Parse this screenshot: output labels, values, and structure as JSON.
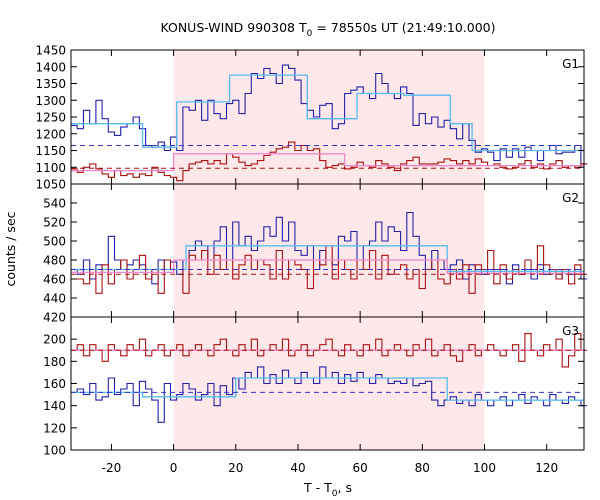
{
  "chart_data": {
    "type": "line",
    "title": "KONUS-WIND 990308 T",
    "title_sub": "0",
    "title_rest": " = 78550s UT (21:49:10.000)",
    "ylabel": "counts / sec",
    "xlabel": "T - T",
    "xlabel_sub": "0",
    "xlabel_rest": ", s",
    "xlim": [
      -33,
      132
    ],
    "x_ticks": [
      -20,
      0,
      20,
      40,
      60,
      80,
      100,
      120
    ],
    "shaded_interval": [
      0,
      100
    ],
    "colors": {
      "raw_blue": "#2222aa",
      "raw_red": "#aa1111",
      "fit_cyan": "#55bbee",
      "fit_pink": "#ee88cc",
      "bg_blue": "#3333cc",
      "bg_red": "#aa1111",
      "shade": "#ffe8ea"
    },
    "panels": [
      {
        "label": "G1",
        "ylim": [
          1050,
          1450
        ],
        "y_ticks": [
          1050,
          1100,
          1150,
          1200,
          1250,
          1300,
          1350,
          1400,
          1450
        ],
        "series": [
          {
            "role": "raw",
            "color": "raw_blue",
            "x0": -33,
            "dx": 2,
            "values": [
              1225,
              1215,
              1270,
              1230,
              1300,
              1245,
              1205,
              1195,
              1220,
              1230,
              1250,
              1215,
              1165,
              1160,
              1175,
              1150,
              1190,
              1150,
              1280,
              1270,
              1300,
              1240,
              1300,
              1260,
              1245,
              1290,
              1300,
              1260,
              1320,
              1380,
              1365,
              1395,
              1380,
              1350,
              1405,
              1395,
              1360,
              1290,
              1270,
              1250,
              1285,
              1290,
              1215,
              1230,
              1320,
              1330,
              1340,
              1320,
              1305,
              1380,
              1350,
              1320,
              1305,
              1340,
              1320,
              1225,
              1260,
              1230,
              1250,
              1220,
              1240,
              1215,
              1185,
              1230,
              1180,
              1145,
              1155,
              1145,
              1120,
              1155,
              1130,
              1155,
              1130,
              1160,
              1150,
              1120,
              1150,
              1165,
              1140,
              1145,
              1145,
              1165,
              1110
            ]
          },
          {
            "role": "raw",
            "color": "raw_red",
            "x0": -33,
            "dx": 2,
            "values": [
              1095,
              1085,
              1100,
              1110,
              1095,
              1080,
              1070,
              1090,
              1075,
              1080,
              1070,
              1080,
              1075,
              1100,
              1085,
              1075,
              1070,
              1060,
              1090,
              1110,
              1115,
              1120,
              1110,
              1120,
              1110,
              1140,
              1130,
              1115,
              1105,
              1110,
              1120,
              1135,
              1145,
              1155,
              1160,
              1175,
              1150,
              1165,
              1150,
              1155,
              1120,
              1100,
              1105,
              1110,
              1095,
              1100,
              1115,
              1105,
              1100,
              1120,
              1110,
              1100,
              1090,
              1110,
              1120,
              1130,
              1110,
              1110,
              1110,
              1115,
              1125,
              1120,
              1110,
              1120,
              1110,
              1125,
              1115,
              1105,
              1110,
              1100,
              1095,
              1100,
              1110,
              1120,
              1100,
              1110,
              1095,
              1110,
              1120,
              1100,
              1105,
              1100,
              1110
            ]
          },
          {
            "role": "fit",
            "color": "fit_cyan",
            "points": [
              [
                -33,
                1230
              ],
              [
                -10,
                1230
              ],
              [
                -10,
                1160
              ],
              [
                1,
                1160
              ],
              [
                1,
                1295
              ],
              [
                18,
                1295
              ],
              [
                18,
                1375
              ],
              [
                43,
                1375
              ],
              [
                43,
                1245
              ],
              [
                59,
                1245
              ],
              [
                59,
                1320
              ],
              [
                74,
                1320
              ],
              [
                74,
                1315
              ],
              [
                89,
                1315
              ],
              [
                89,
                1230
              ],
              [
                96,
                1230
              ],
              [
                96,
                1150
              ],
              [
                132,
                1150
              ]
            ]
          },
          {
            "role": "fit",
            "color": "fit_pink",
            "points": [
              [
                -33,
                1090
              ],
              [
                0,
                1090
              ],
              [
                0,
                1140
              ],
              [
                55,
                1140
              ],
              [
                55,
                1105
              ],
              [
                132,
                1105
              ]
            ]
          },
          {
            "role": "background",
            "color": "bg_blue",
            "value": 1165
          },
          {
            "role": "background",
            "color": "bg_red",
            "value": 1097
          }
        ]
      },
      {
        "label": "G2",
        "ylim": [
          420,
          560
        ],
        "y_ticks": [
          420,
          440,
          460,
          480,
          500,
          520,
          540
        ],
        "series": [
          {
            "role": "raw",
            "color": "raw_blue",
            "x0": -33,
            "dx": 2,
            "values": [
              470,
              465,
              480,
              460,
              475,
              470,
              505,
              480,
              470,
              475,
              480,
              475,
              470,
              455,
              480,
              470,
              478,
              465,
              480,
              490,
              500,
              495,
              480,
              500,
              515,
              480,
              520,
              495,
              505,
              490,
              500,
              515,
              505,
              525,
              500,
              520,
              490,
              485,
              495,
              470,
              490,
              480,
              475,
              505,
              500,
              510,
              480,
              495,
              500,
              520,
              500,
              515,
              510,
              490,
              530,
              505,
              485,
              470,
              490,
              480,
              470,
              475,
              480,
              460,
              475,
              470,
              465,
              470,
              470,
              470,
              455,
              475,
              465,
              470,
              460,
              475,
              465,
              470,
              460,
              470,
              465,
              470,
              460
            ]
          },
          {
            "role": "raw",
            "color": "raw_red",
            "x0": -33,
            "dx": 2,
            "values": [
              460,
              460,
              455,
              470,
              445,
              475,
              455,
              470,
              480,
              460,
              470,
              485,
              460,
              470,
              445,
              480,
              470,
              470,
              445,
              485,
              480,
              490,
              465,
              485,
              470,
              480,
              460,
              475,
              485,
              470,
              480,
              475,
              460,
              490,
              460,
              480,
              475,
              470,
              450,
              480,
              475,
              495,
              460,
              480,
              470,
              460,
              480,
              470,
              490,
              460,
              485,
              465,
              470,
              475,
              460,
              470,
              450,
              470,
              480,
              460,
              455,
              470,
              460,
              475,
              445,
              475,
              470,
              490,
              455,
              475,
              460,
              470,
              465,
              480,
              470,
              495,
              475,
              470,
              460,
              470,
              455,
              475,
              465
            ]
          },
          {
            "role": "fit",
            "color": "fit_cyan",
            "points": [
              [
                -33,
                470
              ],
              [
                4,
                470
              ],
              [
                4,
                495
              ],
              [
                88,
                495
              ],
              [
                88,
                468
              ],
              [
                132,
                468
              ]
            ]
          },
          {
            "role": "fit",
            "color": "fit_pink",
            "points": [
              [
                -33,
                467
              ],
              [
                0,
                467
              ],
              [
                0,
                480
              ],
              [
                88,
                480
              ],
              [
                88,
                466
              ],
              [
                132,
                466
              ]
            ]
          },
          {
            "role": "background",
            "color": "bg_blue",
            "value": 470
          },
          {
            "role": "background",
            "color": "bg_red",
            "value": 465
          }
        ]
      },
      {
        "label": "G3",
        "ylim": [
          100,
          220
        ],
        "y_ticks": [
          100,
          120,
          140,
          160,
          180,
          200
        ],
        "series": [
          {
            "role": "raw",
            "color": "raw_blue",
            "x0": -33,
            "dx": 2,
            "values": [
              152,
              155,
              150,
              160,
              145,
              148,
              165,
              150,
              155,
              160,
              140,
              162,
              155,
              145,
              125,
              160,
              145,
              150,
              160,
              155,
              145,
              150,
              160,
              140,
              158,
              150,
              165,
              155,
              170,
              165,
              175,
              160,
              168,
              160,
              172,
              165,
              160,
              170,
              165,
              160,
              175,
              165,
              170,
              160,
              168,
              162,
              170,
              165,
              160,
              168,
              165,
              160,
              162,
              160,
              165,
              158,
              160,
              162,
              145,
              140,
              145,
              148,
              142,
              145,
              140,
              150,
              145,
              140,
              145,
              148,
              140,
              145,
              150,
              142,
              148,
              145,
              140,
              150,
              145,
              142,
              148,
              145,
              140
            ]
          },
          {
            "role": "raw",
            "color": "raw_red",
            "x0": -33,
            "dx": 2,
            "values": [
              190,
              195,
              185,
              195,
              190,
              180,
              195,
              190,
              185,
              195,
              190,
              200,
              185,
              190,
              195,
              185,
              190,
              195,
              185,
              190,
              195,
              190,
              185,
              195,
              200,
              190,
              185,
              195,
              190,
              200,
              185,
              190,
              195,
              190,
              200,
              185,
              190,
              195,
              185,
              190,
              195,
              200,
              190,
              185,
              195,
              190,
              185,
              195,
              190,
              200,
              185,
              190,
              195,
              190,
              185,
              195,
              190,
              200,
              185,
              190,
              195,
              185,
              180,
              190,
              195,
              185,
              190,
              195,
              190,
              185,
              190,
              195,
              180,
              205,
              190,
              185,
              195,
              190,
              200,
              175,
              185,
              205,
              190
            ]
          },
          {
            "role": "fit",
            "color": "fit_cyan",
            "points": [
              [
                -33,
                152
              ],
              [
                -10,
                152
              ],
              [
                -10,
                148
              ],
              [
                20,
                148
              ],
              [
                20,
                165
              ],
              [
                88,
                165
              ],
              [
                88,
                145
              ],
              [
                132,
                145
              ]
            ]
          },
          {
            "role": "fit",
            "color": "fit_pink",
            "points": [
              [
                -33,
                190
              ],
              [
                132,
                190
              ]
            ]
          },
          {
            "role": "background",
            "color": "bg_blue",
            "value": 152
          },
          {
            "role": "background",
            "color": "bg_red",
            "value": 190
          }
        ]
      }
    ]
  }
}
